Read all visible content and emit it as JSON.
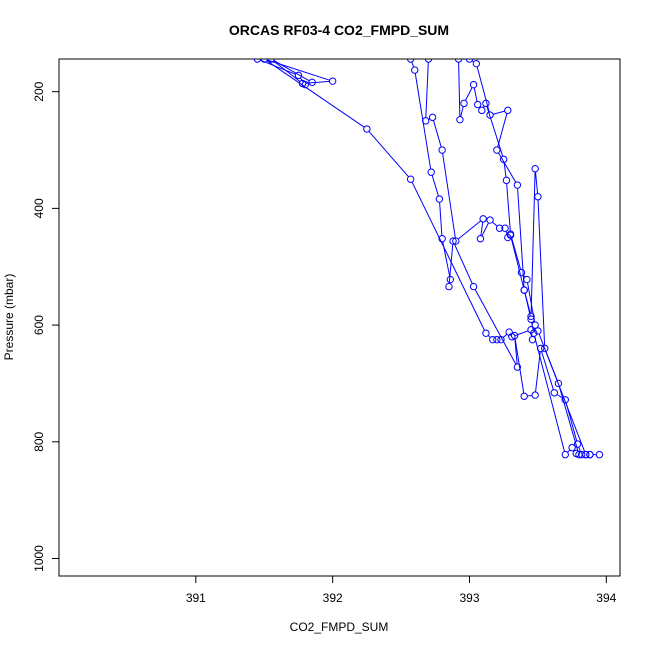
{
  "chart_data": {
    "type": "line",
    "title": "ORCAS RF03-4 CO2_FMPD_SUM",
    "xlabel": "CO2_FMPD_SUM",
    "ylabel": "Pressure (mbar)",
    "xlim": [
      390.0,
      394.1
    ],
    "ylim": [
      1030,
      144
    ],
    "y_inverted": true,
    "xticks": [
      391,
      392,
      393,
      394
    ],
    "yticks": [
      200,
      400,
      600,
      800,
      1000
    ],
    "grid": false,
    "marker": "open-circle",
    "color": "#0000ff",
    "series": [
      {
        "x": [
          391.45,
          391.75,
          391.8,
          391.85,
          391.55,
          391.78,
          392.0,
          391.5,
          392.25,
          392.57,
          393.12,
          393.17,
          393.2,
          393.23,
          393.29,
          393.31,
          393.45,
          393.46
        ],
        "y": [
          144,
          172,
          188,
          184,
          144,
          186,
          182,
          144,
          264,
          350,
          614,
          625,
          625,
          625,
          612,
          620,
          608,
          625
        ]
      },
      {
        "x": [
          392.57,
          392.6,
          392.72,
          392.78,
          392.8,
          392.86,
          392.85,
          392.88,
          393.03,
          393.35,
          393.33,
          393.4,
          393.48,
          393.52,
          393.62,
          393.7,
          393.79,
          393.82
        ],
        "y": [
          144,
          163,
          338,
          384,
          452,
          522,
          534,
          456,
          534,
          672,
          618,
          722,
          720,
          640,
          716,
          728,
          804,
          822
        ]
      },
      {
        "x": [
          392.7,
          392.68,
          392.73,
          392.8,
          392.9,
          393.1,
          393.08,
          393.15,
          393.22,
          393.26,
          393.28,
          393.3,
          393.4,
          393.45,
          393.47,
          393.7,
          393.75,
          393.78
        ],
        "y": [
          144,
          250,
          244,
          300,
          456,
          418,
          452,
          420,
          434,
          434,
          450,
          446,
          540,
          590,
          614,
          822,
          810,
          820
        ]
      },
      {
        "x": [
          392.92,
          392.93,
          392.96,
          393.03,
          393.06,
          393.09,
          393.12,
          393.25,
          393.27,
          393.3,
          393.38,
          393.42,
          393.48,
          393.5,
          393.85,
          393.88,
          393.95
        ],
        "y": [
          144,
          248,
          220,
          188,
          222,
          232,
          220,
          316,
          352,
          444,
          510,
          522,
          600,
          610,
          822,
          822,
          822
        ]
      },
      {
        "x": [
          393.0,
          393.05,
          393.15,
          393.28,
          393.2,
          393.35,
          393.4,
          393.45,
          393.48,
          393.5,
          393.55,
          393.65,
          393.8,
          393.85,
          393.88
        ],
        "y": [
          144,
          152,
          240,
          232,
          300,
          360,
          540,
          585,
          332,
          380,
          640,
          700,
          822,
          822,
          822
        ]
      }
    ]
  }
}
